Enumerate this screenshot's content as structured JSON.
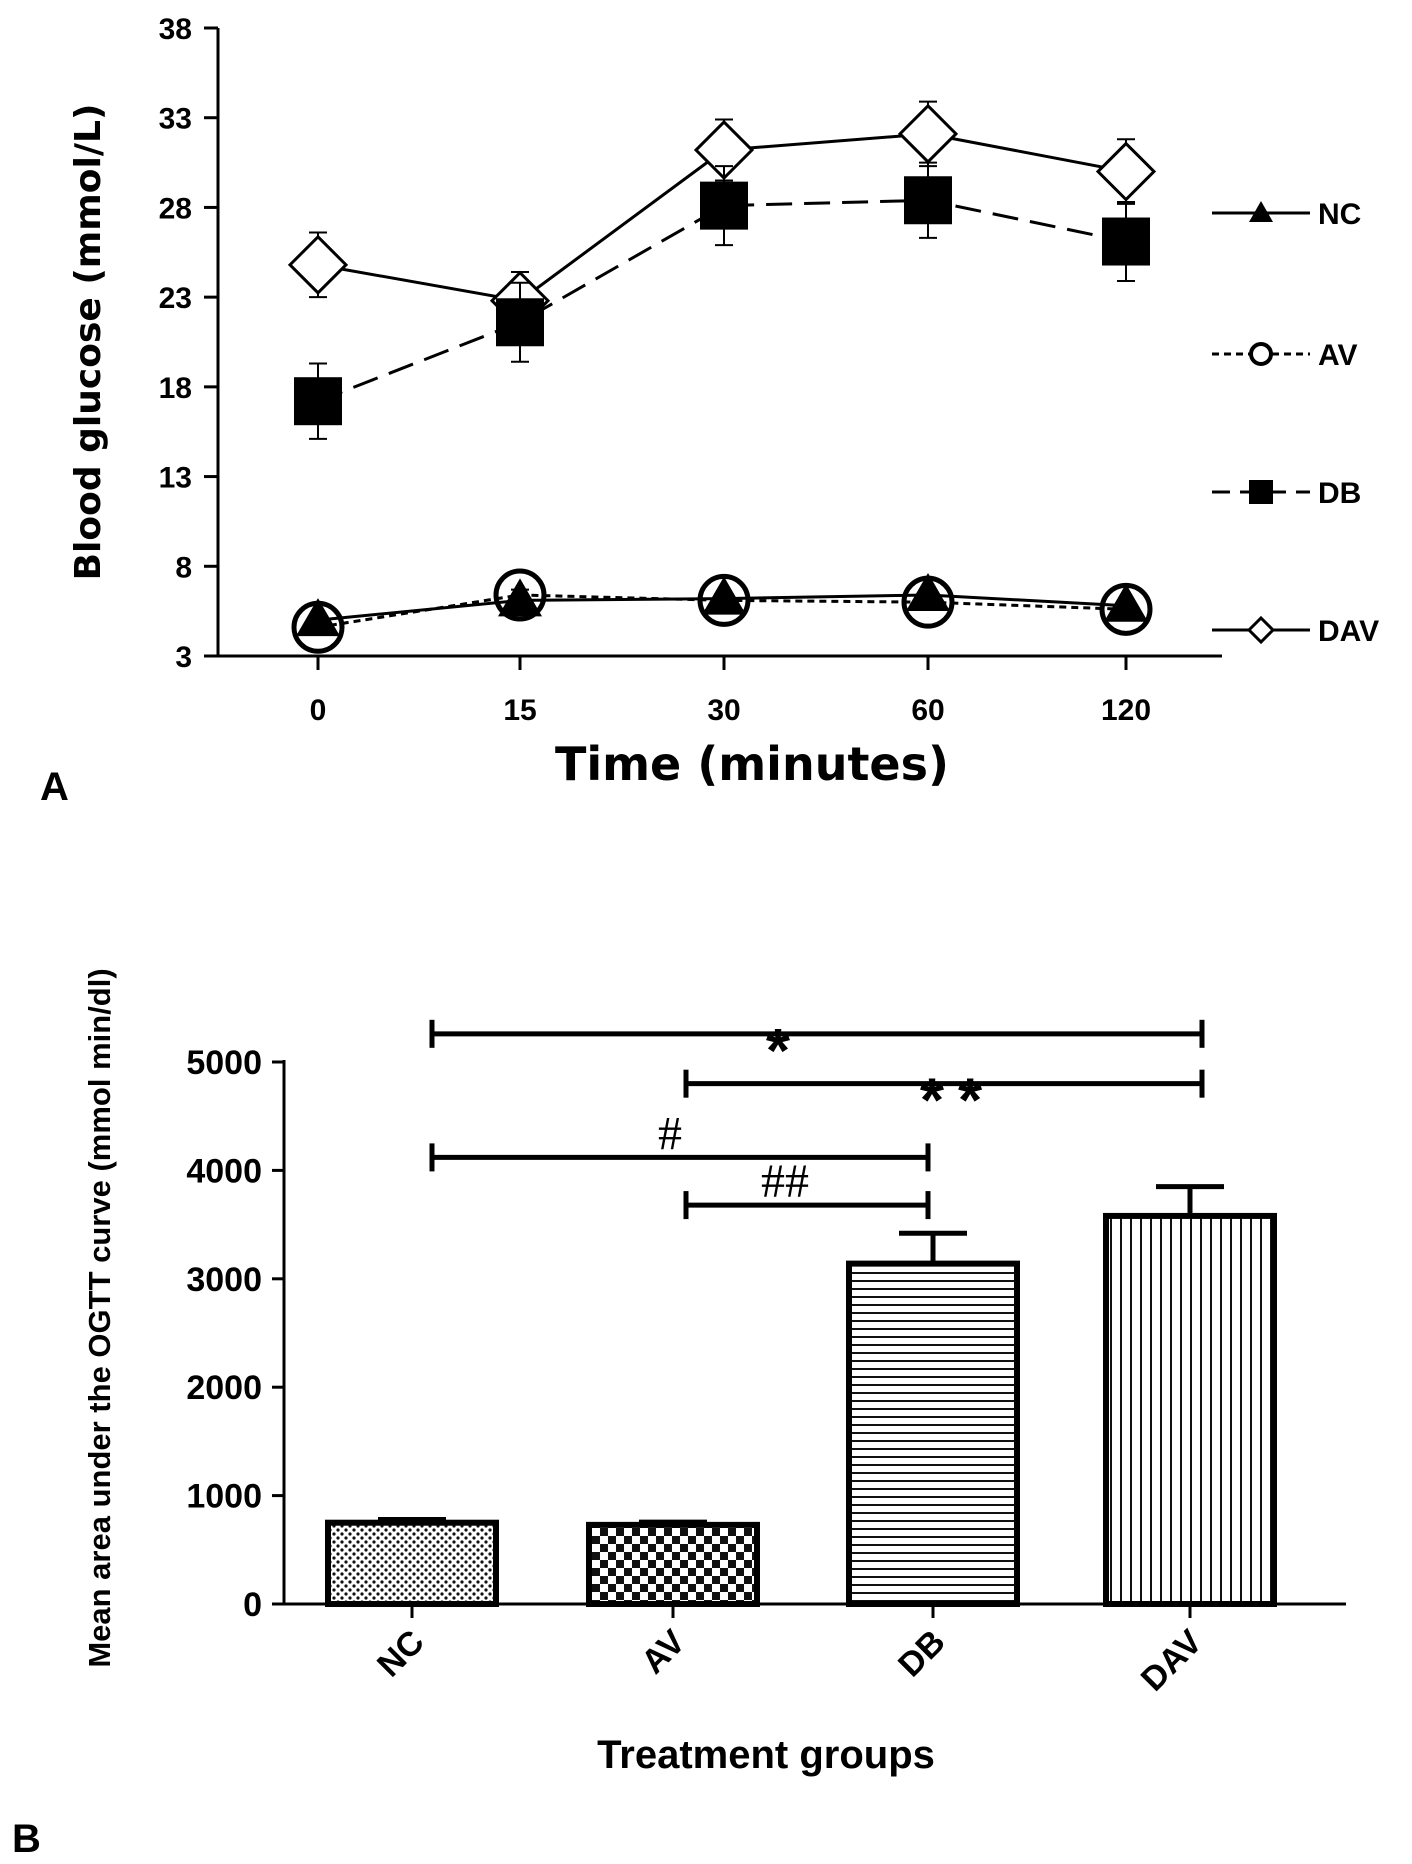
{
  "panel_a": {
    "letter": "A"
  },
  "panel_b": {
    "letter": "B"
  },
  "chart_data": [
    {
      "type": "line",
      "xlabel": "Time (minutes)",
      "ylabel": "Blood glucose (mmol/L)",
      "x": [
        "0",
        "15",
        "30",
        "60",
        "120"
      ],
      "ylim": [
        3,
        38
      ],
      "yticks": [
        3,
        8,
        13,
        18,
        23,
        28,
        33,
        38
      ],
      "legend_position": "right",
      "series": [
        {
          "name": "NC",
          "marker": "filled-triangle",
          "line": "solid",
          "values": [
            5.0,
            6.1,
            6.2,
            6.4,
            5.8
          ],
          "errors": [
            0.3,
            0.3,
            0.3,
            0.3,
            0.3
          ]
        },
        {
          "name": "AV",
          "marker": "open-circle",
          "line": "dotted",
          "values": [
            4.6,
            6.4,
            6.1,
            6.0,
            5.6
          ],
          "errors": [
            0.3,
            0.3,
            0.3,
            0.3,
            0.3
          ]
        },
        {
          "name": "DB",
          "marker": "filled-square",
          "line": "dashed",
          "values": [
            17.2,
            21.6,
            28.1,
            28.4,
            26.1
          ],
          "errors": [
            2.1,
            2.2,
            2.2,
            2.1,
            2.2
          ]
        },
        {
          "name": "DAV",
          "marker": "open-diamond",
          "line": "solid",
          "values": [
            24.8,
            22.8,
            31.2,
            32.1,
            30.0
          ],
          "errors": [
            1.8,
            1.6,
            1.7,
            1.8,
            1.8
          ]
        }
      ]
    },
    {
      "type": "bar",
      "xlabel": "Treatment groups",
      "ylabel": "Mean area under the OGTT curve (mmol min/dl)",
      "categories": [
        "NC",
        "AV",
        "DB",
        "DAV"
      ],
      "values": [
        750,
        730,
        3140,
        3580
      ],
      "errors": [
        30,
        25,
        280,
        270
      ],
      "patterns": [
        "dots",
        "checker",
        "horizontal-lines",
        "vertical-lines"
      ],
      "ylim": [
        0,
        5000
      ],
      "yticks": [
        0,
        1000,
        2000,
        3000,
        4000,
        5000
      ],
      "significance": [
        {
          "label": "*",
          "from": "NC",
          "to": "DAV",
          "level": 5260
        },
        {
          "label": "**",
          "from": "AV",
          "to": "DAV",
          "level": 4800
        },
        {
          "label": "#",
          "from": "NC",
          "to": "DB",
          "level": 4120
        },
        {
          "label": "##",
          "from": "AV",
          "to": "DB",
          "level": 3680
        }
      ]
    }
  ]
}
